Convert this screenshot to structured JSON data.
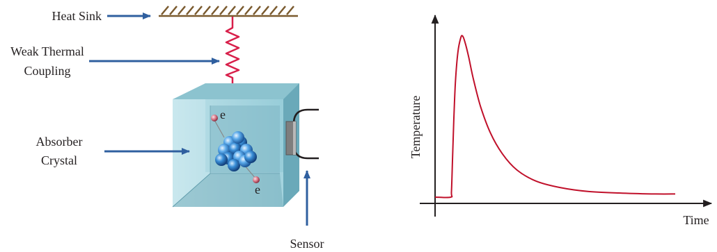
{
  "diagram": {
    "labels": {
      "heat_sink": "Heat Sink",
      "coupling_line1": "Weak Thermal",
      "coupling_line2": "Coupling",
      "absorber_line1": "Absorber",
      "absorber_line2": "Crystal",
      "sensor": "Sensor",
      "electron_top": "e",
      "electron_bottom": "e"
    },
    "colors": {
      "arrow": "#2f5f9f",
      "heat_sink": "#7a5a2e",
      "spring": "#d81f4a",
      "crystal_front": "#a9d6e0",
      "crystal_side": "#74b1c0",
      "crystal_top": "#8cc3cf",
      "nucleus": "#3a8fd8",
      "electron": "#d97a8a"
    }
  },
  "chart_data": {
    "type": "line",
    "title": "",
    "xlabel": "Time",
    "ylabel": "Temperature",
    "axis_ticks": false,
    "series": [
      {
        "color": "#c0102a",
        "x": [
          0,
          0.065,
          0.068,
          0.072,
          0.078,
          0.085,
          0.095,
          0.107,
          0.115,
          0.125,
          0.14,
          0.16,
          0.19,
          0.23,
          0.28,
          0.34,
          0.42,
          0.52,
          0.64,
          0.78,
          0.92,
          1.0
        ],
        "y": [
          0.0,
          0.0,
          0.03,
          0.2,
          0.48,
          0.72,
          0.9,
          0.99,
          1.0,
          0.96,
          0.87,
          0.73,
          0.56,
          0.4,
          0.27,
          0.17,
          0.1,
          0.06,
          0.035,
          0.025,
          0.02,
          0.02
        ]
      }
    ]
  }
}
